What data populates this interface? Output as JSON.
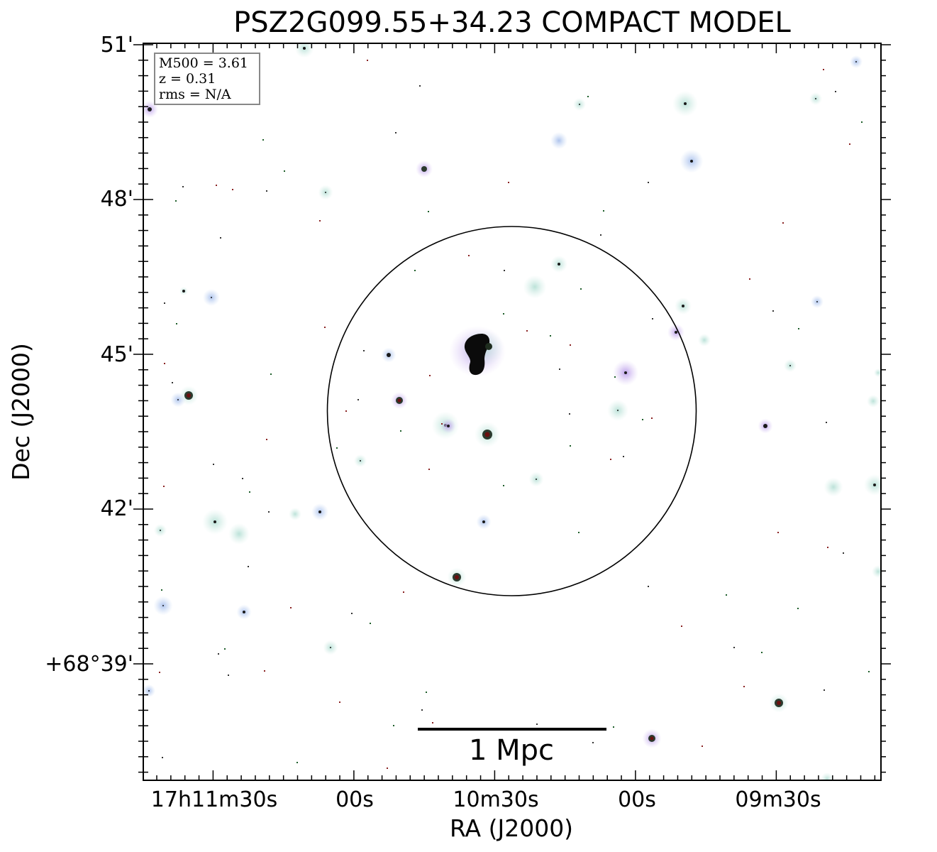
{
  "title": "PSZ2G099.55+34.23 COMPACT MODEL",
  "axes": {
    "xlabel": "RA (J2000)",
    "ylabel": "Dec (J2000)",
    "x_ticks": [
      "17h11m30s",
      "00s",
      "10m30s",
      "00s",
      "09m30s"
    ],
    "y_ticks": [
      "51'",
      "48'",
      "45'",
      "42'",
      "+68°39'"
    ]
  },
  "info": {
    "mass": "M500 = 3.61",
    "redshift": "z = 0.31",
    "rms": "rms = N/A"
  },
  "scalebar": {
    "label": "1 Mpc"
  },
  "colors": {
    "background": "#ffffff",
    "frame": "#000000",
    "halo_blue": "#b9cdee",
    "halo_teal": "#cfe9e4",
    "halo_purple": "#cdb2ec",
    "source_core": "#000000",
    "info_border": "#888888"
  }
}
